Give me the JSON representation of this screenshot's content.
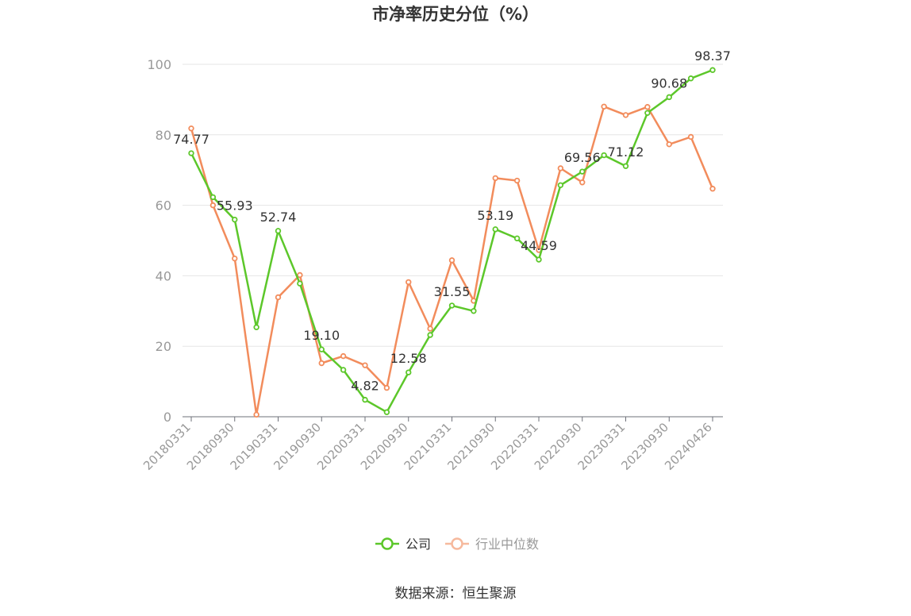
{
  "chart_data": {
    "type": "line",
    "title": "市净率历史分位（%）",
    "xlabel": "",
    "ylabel": "",
    "ylim": [
      0,
      100
    ],
    "yticks": [
      0,
      20,
      40,
      60,
      80,
      100
    ],
    "grid": true,
    "legend_position": "bottom",
    "x": [
      "20180331",
      "20180630",
      "20180930",
      "20181231",
      "20190331",
      "20190630",
      "20190930",
      "20191231",
      "20200331",
      "20200630",
      "20200930",
      "20201231",
      "20210331",
      "20210630",
      "20210930",
      "20211231",
      "20220331",
      "20220630",
      "20220930",
      "20221231",
      "20230331",
      "20230630",
      "20230930",
      "20231231",
      "20240426"
    ],
    "xtick_labels": [
      "20180331",
      "20180930",
      "20190331",
      "20190930",
      "20200331",
      "20200930",
      "20210331",
      "20210930",
      "20220331",
      "20220930",
      "20230331",
      "20230930",
      "20240426"
    ],
    "series": [
      {
        "name": "公司",
        "color": "#5cc72a",
        "values": [
          74.77,
          62.3,
          55.93,
          25.4,
          52.74,
          37.8,
          19.1,
          13.3,
          4.82,
          1.3,
          12.58,
          23.2,
          31.55,
          30.0,
          53.19,
          50.6,
          44.59,
          65.7,
          69.56,
          74.2,
          71.12,
          86.2,
          90.68,
          96.0,
          98.37
        ],
        "labels": [
          "74.77",
          null,
          "55.93",
          null,
          "52.74",
          null,
          "19.10",
          null,
          "4.82",
          null,
          "12.58",
          null,
          "31.55",
          null,
          "53.19",
          null,
          "44.59",
          null,
          "69.56",
          null,
          "71.12",
          null,
          "90.68",
          null,
          "98.37"
        ]
      },
      {
        "name": "行业中位数",
        "color": "#f28c5c",
        "values": [
          81.8,
          60.0,
          44.9,
          0.6,
          33.9,
          40.2,
          15.2,
          17.2,
          14.6,
          8.2,
          38.2,
          25.0,
          44.4,
          32.9,
          67.7,
          67.0,
          47.3,
          70.5,
          66.5,
          88.0,
          85.6,
          87.9,
          77.3,
          79.4,
          64.7
        ],
        "labels": []
      }
    ]
  },
  "legend": {
    "items": [
      {
        "label": "公司",
        "color": "#5cc72a"
      },
      {
        "label": "行业中位数",
        "color": "#f6b99d"
      }
    ]
  },
  "source": "数据来源：恒生聚源"
}
